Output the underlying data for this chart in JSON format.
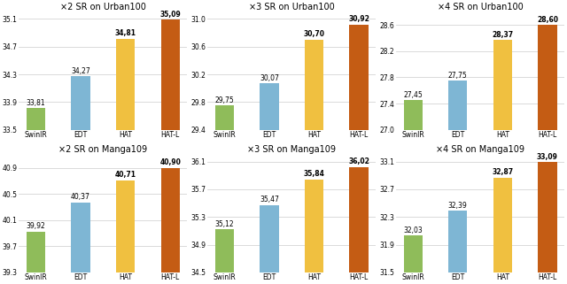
{
  "charts": [
    {
      "title": "×2 SR on Urban100",
      "values": [
        33.81,
        34.27,
        34.81,
        35.09
      ],
      "ylim": [
        33.5,
        35.2
      ],
      "yticks": [
        33.5,
        33.9,
        34.3,
        34.7,
        35.1
      ]
    },
    {
      "title": "×3 SR on Urban100",
      "values": [
        29.75,
        30.07,
        30.7,
        30.92
      ],
      "ylim": [
        29.4,
        31.1
      ],
      "yticks": [
        29.4,
        29.8,
        30.2,
        30.6,
        31.0
      ]
    },
    {
      "title": "×4 SR on Urban100",
      "values": [
        27.45,
        27.75,
        28.37,
        28.6
      ],
      "ylim": [
        27.0,
        28.8
      ],
      "yticks": [
        27.0,
        27.4,
        27.8,
        28.2,
        28.6
      ]
    },
    {
      "title": "×2 SR on Manga109",
      "values": [
        39.92,
        40.37,
        40.71,
        40.9
      ],
      "ylim": [
        39.3,
        41.1
      ],
      "yticks": [
        39.3,
        39.7,
        40.1,
        40.5,
        40.9
      ]
    },
    {
      "title": "×3 SR on Manga109",
      "values": [
        35.12,
        35.47,
        35.84,
        36.02
      ],
      "ylim": [
        34.5,
        36.2
      ],
      "yticks": [
        34.5,
        34.9,
        35.3,
        35.7,
        36.1
      ]
    },
    {
      "title": "×4 SR on Manga109",
      "values": [
        32.03,
        32.39,
        32.87,
        33.09
      ],
      "ylim": [
        31.5,
        33.2
      ],
      "yticks": [
        31.5,
        31.9,
        32.3,
        32.7,
        33.1
      ]
    }
  ],
  "categories": [
    "SwinIR",
    "EDT",
    "HAT",
    "HAT-L"
  ],
  "bar_colors": [
    "#8fbc5a",
    "#7eb6d4",
    "#f0c040",
    "#c45c14"
  ],
  "title_fontsize": 7.0,
  "tick_fontsize": 5.5,
  "value_label_fontsize": 5.5,
  "bar_width": 0.42
}
